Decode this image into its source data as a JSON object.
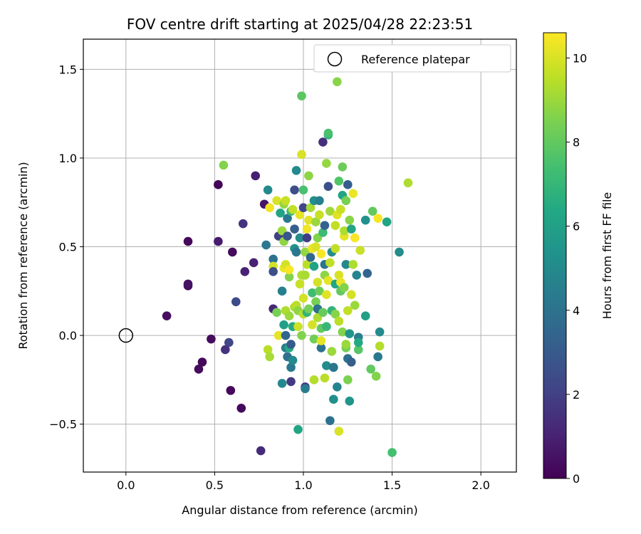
{
  "chart_data": {
    "type": "scatter",
    "title": "FOV centre drift starting at 2025/04/28 22:23:51",
    "xlabel": "Angular distance from reference (arcmin)",
    "ylabel": "Rotation from reference (arcmin)",
    "xlim": [
      -0.24,
      2.2
    ],
    "ylim": [
      -0.77,
      1.67
    ],
    "xticks": [
      0.0,
      0.5,
      1.0,
      1.5,
      2.0
    ],
    "xtick_labels": [
      "0.0",
      "0.5",
      "1.0",
      "1.5",
      "2.0"
    ],
    "yticks": [
      -0.5,
      0.0,
      0.5,
      1.0,
      1.5
    ],
    "ytick_labels": [
      "−0.5",
      "0.0",
      "0.5",
      "1.0",
      "1.5"
    ],
    "grid": true,
    "legend": {
      "position": "top-right",
      "entries": [
        "Reference platepar"
      ]
    },
    "reference_point": {
      "x": 0.0,
      "y": 0.0,
      "marker": "open-circle"
    },
    "colorbar": {
      "label": "Hours from first FF file",
      "colormap": "viridis",
      "range": [
        0,
        10.6
      ],
      "ticks": [
        0,
        2,
        4,
        6,
        8,
        10
      ],
      "tick_labels": [
        "0",
        "2",
        "4",
        "6",
        "8",
        "10"
      ]
    },
    "points": [
      {
        "x": 0.23,
        "y": 0.11,
        "c": 0.4
      },
      {
        "x": 0.35,
        "y": 0.53,
        "c": 0.2
      },
      {
        "x": 0.35,
        "y": 0.28,
        "c": 0.3
      },
      {
        "x": 0.35,
        "y": 0.29,
        "c": 0.5
      },
      {
        "x": 0.41,
        "y": -0.19,
        "c": 0.3
      },
      {
        "x": 0.43,
        "y": -0.15,
        "c": 0.2
      },
      {
        "x": 0.48,
        "y": -0.02,
        "c": 0.3
      },
      {
        "x": 0.52,
        "y": 0.85,
        "c": 0.1
      },
      {
        "x": 0.52,
        "y": 0.53,
        "c": 0.8
      },
      {
        "x": 0.56,
        "y": -0.08,
        "c": 1.5
      },
      {
        "x": 0.58,
        "y": -0.04,
        "c": 2.2
      },
      {
        "x": 0.59,
        "y": -0.31,
        "c": 0.2
      },
      {
        "x": 0.6,
        "y": 0.47,
        "c": 0.3
      },
      {
        "x": 0.62,
        "y": 0.19,
        "c": 2.4
      },
      {
        "x": 0.65,
        "y": -0.41,
        "c": 0.2
      },
      {
        "x": 0.67,
        "y": 0.36,
        "c": 1.0
      },
      {
        "x": 0.66,
        "y": 0.63,
        "c": 1.6
      },
      {
        "x": 0.73,
        "y": 0.9,
        "c": 0.9
      },
      {
        "x": 0.72,
        "y": 0.41,
        "c": 1.0
      },
      {
        "x": 0.76,
        "y": -0.65,
        "c": 1.3
      },
      {
        "x": 0.55,
        "y": 0.96,
        "c": 8.6
      },
      {
        "x": 0.78,
        "y": 0.74,
        "c": 0.6
      },
      {
        "x": 0.79,
        "y": 0.51,
        "c": 4.2
      },
      {
        "x": 0.8,
        "y": 0.82,
        "c": 5.0
      },
      {
        "x": 0.8,
        "y": -0.08,
        "c": 9.5
      },
      {
        "x": 0.81,
        "y": -0.12,
        "c": 9.2
      },
      {
        "x": 0.81,
        "y": 0.72,
        "c": 10.4
      },
      {
        "x": 0.83,
        "y": 0.43,
        "c": 4.0
      },
      {
        "x": 0.83,
        "y": 0.39,
        "c": 9.9
      },
      {
        "x": 0.83,
        "y": 0.15,
        "c": 1.2
      },
      {
        "x": 0.83,
        "y": 0.36,
        "c": 2.5
      },
      {
        "x": 0.85,
        "y": 0.13,
        "c": 8.4
      },
      {
        "x": 0.85,
        "y": 0.76,
        "c": 10.0
      },
      {
        "x": 0.86,
        "y": 0.0,
        "c": 10.2
      },
      {
        "x": 0.86,
        "y": 0.56,
        "c": 2.0
      },
      {
        "x": 0.87,
        "y": 0.69,
        "c": 6.2
      },
      {
        "x": 0.88,
        "y": 0.25,
        "c": 4.6
      },
      {
        "x": 0.88,
        "y": 0.59,
        "c": 9.0
      },
      {
        "x": 0.88,
        "y": -0.27,
        "c": 5.0
      },
      {
        "x": 0.89,
        "y": 0.74,
        "c": 8.9
      },
      {
        "x": 0.89,
        "y": 0.53,
        "c": 8.8
      },
      {
        "x": 0.89,
        "y": 0.38,
        "c": 10.3
      },
      {
        "x": 0.89,
        "y": 0.06,
        "c": 6.0
      },
      {
        "x": 0.9,
        "y": 0.4,
        "c": 9.9
      },
      {
        "x": 0.9,
        "y": 0.76,
        "c": 9.7
      },
      {
        "x": 0.9,
        "y": 0.0,
        "c": 3.5
      },
      {
        "x": 0.9,
        "y": -0.07,
        "c": 4.5
      },
      {
        "x": 0.9,
        "y": 0.14,
        "c": 9.3
      },
      {
        "x": 0.91,
        "y": 0.66,
        "c": 4.3
      },
      {
        "x": 0.91,
        "y": -0.12,
        "c": 3.9
      },
      {
        "x": 0.91,
        "y": 0.56,
        "c": 2.8
      },
      {
        "x": 0.92,
        "y": 0.33,
        "c": 8.6
      },
      {
        "x": 0.92,
        "y": 0.11,
        "c": 9.0
      },
      {
        "x": 0.92,
        "y": 0.37,
        "c": 10.5
      },
      {
        "x": 0.92,
        "y": -0.07,
        "c": 6.4
      },
      {
        "x": 0.93,
        "y": -0.05,
        "c": 3.0
      },
      {
        "x": 0.93,
        "y": -0.18,
        "c": 4.2
      },
      {
        "x": 0.93,
        "y": 0.7,
        "c": 7.1
      },
      {
        "x": 0.93,
        "y": -0.26,
        "c": 1.8
      },
      {
        "x": 0.94,
        "y": -0.14,
        "c": 5.0
      },
      {
        "x": 0.94,
        "y": 0.05,
        "c": 6.5
      },
      {
        "x": 0.94,
        "y": 0.71,
        "c": 9.6
      },
      {
        "x": 0.95,
        "y": 0.16,
        "c": 9.3
      },
      {
        "x": 0.95,
        "y": 0.49,
        "c": 5.3
      },
      {
        "x": 0.95,
        "y": 0.6,
        "c": 3.2
      },
      {
        "x": 0.95,
        "y": 0.82,
        "c": 2.5
      },
      {
        "x": 0.96,
        "y": 0.93,
        "c": 5.0
      },
      {
        "x": 0.96,
        "y": 0.47,
        "c": 4.2
      },
      {
        "x": 0.96,
        "y": 0.17,
        "c": 9.5
      },
      {
        "x": 0.97,
        "y": 0.14,
        "c": 8.8
      },
      {
        "x": 0.97,
        "y": -0.53,
        "c": 6.2
      },
      {
        "x": 0.97,
        "y": 0.05,
        "c": 9.8
      },
      {
        "x": 0.98,
        "y": 0.68,
        "c": 10.2
      },
      {
        "x": 0.98,
        "y": 0.55,
        "c": 5.1
      },
      {
        "x": 0.98,
        "y": 0.29,
        "c": 9.7
      },
      {
        "x": 0.99,
        "y": 1.35,
        "c": 7.9
      },
      {
        "x": 0.99,
        "y": 1.02,
        "c": 10.0
      },
      {
        "x": 0.99,
        "y": 0.34,
        "c": 9.4
      },
      {
        "x": 0.99,
        "y": 0.0,
        "c": 8.6
      },
      {
        "x": 1.0,
        "y": 0.82,
        "c": 7.5
      },
      {
        "x": 1.0,
        "y": 0.72,
        "c": 2.2
      },
      {
        "x": 1.0,
        "y": 0.21,
        "c": 9.9
      },
      {
        "x": 1.0,
        "y": 0.12,
        "c": 9.5
      },
      {
        "x": 1.01,
        "y": -0.29,
        "c": 1.8
      },
      {
        "x": 1.01,
        "y": -0.3,
        "c": 4.4
      },
      {
        "x": 1.01,
        "y": 0.34,
        "c": 9.2
      },
      {
        "x": 1.01,
        "y": 0.47,
        "c": 8.9
      },
      {
        "x": 1.02,
        "y": 0.6,
        "c": 10.4
      },
      {
        "x": 1.02,
        "y": 0.55,
        "c": 1.9
      },
      {
        "x": 1.02,
        "y": 0.13,
        "c": 6.9
      },
      {
        "x": 1.02,
        "y": 0.4,
        "c": 9.5
      },
      {
        "x": 1.03,
        "y": 0.9,
        "c": 8.8
      },
      {
        "x": 1.03,
        "y": 0.65,
        "c": 10.1
      },
      {
        "x": 1.03,
        "y": 0.15,
        "c": 8.4
      },
      {
        "x": 1.04,
        "y": 0.44,
        "c": 3.5
      },
      {
        "x": 1.04,
        "y": 0.72,
        "c": 9.2
      },
      {
        "x": 1.05,
        "y": 0.06,
        "c": 9.9
      },
      {
        "x": 1.05,
        "y": 0.49,
        "c": 10.3
      },
      {
        "x": 1.05,
        "y": 0.24,
        "c": 7.3
      },
      {
        "x": 1.06,
        "y": 0.76,
        "c": 5.2
      },
      {
        "x": 1.06,
        "y": -0.25,
        "c": 9.4
      },
      {
        "x": 1.06,
        "y": 0.39,
        "c": 6.1
      },
      {
        "x": 1.06,
        "y": -0.02,
        "c": 8.3
      },
      {
        "x": 1.07,
        "y": 0.5,
        "c": 10.0
      },
      {
        "x": 1.07,
        "y": 0.19,
        "c": 8.4
      },
      {
        "x": 1.07,
        "y": 0.64,
        "c": 9.0
      },
      {
        "x": 1.08,
        "y": 0.55,
        "c": 8.6
      },
      {
        "x": 1.08,
        "y": 0.1,
        "c": 9.3
      },
      {
        "x": 1.08,
        "y": 0.3,
        "c": 9.9
      },
      {
        "x": 1.08,
        "y": 0.15,
        "c": 3.9
      },
      {
        "x": 1.09,
        "y": 0.76,
        "c": 4.6
      },
      {
        "x": 1.09,
        "y": 0.25,
        "c": 8.2
      },
      {
        "x": 1.09,
        "y": 0.68,
        "c": 9.7
      },
      {
        "x": 1.1,
        "y": -0.07,
        "c": 4.0
      },
      {
        "x": 1.1,
        "y": 0.46,
        "c": 10.5
      },
      {
        "x": 1.1,
        "y": -0.03,
        "c": 10.2
      },
      {
        "x": 1.1,
        "y": 0.04,
        "c": 8.0
      },
      {
        "x": 1.11,
        "y": 0.58,
        "c": 7.2
      },
      {
        "x": 1.11,
        "y": 0.13,
        "c": 8.1
      },
      {
        "x": 1.11,
        "y": 1.09,
        "c": 1.4
      },
      {
        "x": 1.12,
        "y": 0.62,
        "c": 3.3
      },
      {
        "x": 1.12,
        "y": 0.34,
        "c": 8.8
      },
      {
        "x": 1.12,
        "y": 0.4,
        "c": 4.1
      },
      {
        "x": 1.12,
        "y": -0.24,
        "c": 9.5
      },
      {
        "x": 1.13,
        "y": 0.23,
        "c": 10.1
      },
      {
        "x": 1.13,
        "y": 0.05,
        "c": 7.0
      },
      {
        "x": 1.13,
        "y": -0.17,
        "c": 5.1
      },
      {
        "x": 1.13,
        "y": 0.97,
        "c": 8.9
      },
      {
        "x": 1.14,
        "y": 1.13,
        "c": 6.8
      },
      {
        "x": 1.14,
        "y": 1.14,
        "c": 7.5
      },
      {
        "x": 1.14,
        "y": 0.84,
        "c": 2.6
      },
      {
        "x": 1.14,
        "y": 0.31,
        "c": 10.2
      },
      {
        "x": 1.15,
        "y": -0.48,
        "c": 4.0
      },
      {
        "x": 1.15,
        "y": 0.7,
        "c": 9.1
      },
      {
        "x": 1.15,
        "y": 0.41,
        "c": 9.6
      },
      {
        "x": 1.16,
        "y": 0.14,
        "c": 6.9
      },
      {
        "x": 1.16,
        "y": -0.09,
        "c": 9.0
      },
      {
        "x": 1.16,
        "y": 0.47,
        "c": 5.1
      },
      {
        "x": 1.17,
        "y": -0.18,
        "c": 4.1
      },
      {
        "x": 1.17,
        "y": -0.36,
        "c": 5.2
      },
      {
        "x": 1.18,
        "y": 0.12,
        "c": 8.7
      },
      {
        "x": 1.18,
        "y": 0.62,
        "c": 9.6
      },
      {
        "x": 1.18,
        "y": 0.29,
        "c": 6.2
      },
      {
        "x": 1.18,
        "y": 0.49,
        "c": 9.6
      },
      {
        "x": 1.19,
        "y": 1.43,
        "c": 8.7
      },
      {
        "x": 1.19,
        "y": -0.29,
        "c": 4.8
      },
      {
        "x": 1.19,
        "y": 0.68,
        "c": 10.1
      },
      {
        "x": 1.2,
        "y": 0.87,
        "c": 7.7
      },
      {
        "x": 1.2,
        "y": 0.08,
        "c": 9.5
      },
      {
        "x": 1.2,
        "y": -0.54,
        "c": 10.0
      },
      {
        "x": 1.2,
        "y": 0.34,
        "c": 10.0
      },
      {
        "x": 1.21,
        "y": 0.25,
        "c": 8.0
      },
      {
        "x": 1.21,
        "y": 0.71,
        "c": 9.7
      },
      {
        "x": 1.21,
        "y": 0.3,
        "c": 10.3
      },
      {
        "x": 1.22,
        "y": 0.95,
        "c": 8.2
      },
      {
        "x": 1.22,
        "y": 0.79,
        "c": 6.2
      },
      {
        "x": 1.22,
        "y": 0.02,
        "c": 8.6
      },
      {
        "x": 1.23,
        "y": 0.27,
        "c": 8.6
      },
      {
        "x": 1.23,
        "y": 0.56,
        "c": 10.2
      },
      {
        "x": 1.23,
        "y": 0.59,
        "c": 9.3
      },
      {
        "x": 1.24,
        "y": -0.07,
        "c": 8.4
      },
      {
        "x": 1.24,
        "y": 0.76,
        "c": 8.4
      },
      {
        "x": 1.24,
        "y": -0.05,
        "c": 9.0
      },
      {
        "x": 1.24,
        "y": 0.4,
        "c": 4.9
      },
      {
        "x": 1.25,
        "y": 0.14,
        "c": 9.6
      },
      {
        "x": 1.25,
        "y": -0.13,
        "c": 4.0
      },
      {
        "x": 1.25,
        "y": -0.25,
        "c": 8.5
      },
      {
        "x": 1.25,
        "y": 0.85,
        "c": 3.1
      },
      {
        "x": 1.26,
        "y": -0.37,
        "c": 5.5
      },
      {
        "x": 1.26,
        "y": 0.01,
        "c": 5.5
      },
      {
        "x": 1.26,
        "y": 0.65,
        "c": 8.7
      },
      {
        "x": 1.27,
        "y": 0.6,
        "c": 6.2
      },
      {
        "x": 1.27,
        "y": -0.15,
        "c": 3.2
      },
      {
        "x": 1.27,
        "y": 0.23,
        "c": 9.9
      },
      {
        "x": 1.28,
        "y": 0.8,
        "c": 10.3
      },
      {
        "x": 1.28,
        "y": 0.4,
        "c": 9.3
      },
      {
        "x": 1.29,
        "y": 0.17,
        "c": 9.0
      },
      {
        "x": 1.29,
        "y": 0.55,
        "c": 10.5
      },
      {
        "x": 1.3,
        "y": 0.34,
        "c": 4.8
      },
      {
        "x": 1.31,
        "y": -0.01,
        "c": 4.5
      },
      {
        "x": 1.31,
        "y": -0.08,
        "c": 7.8
      },
      {
        "x": 1.31,
        "y": -0.04,
        "c": 6.4
      },
      {
        "x": 1.32,
        "y": 0.48,
        "c": 9.7
      },
      {
        "x": 1.35,
        "y": 0.11,
        "c": 6.0
      },
      {
        "x": 1.35,
        "y": 0.65,
        "c": 5.3
      },
      {
        "x": 1.36,
        "y": 0.35,
        "c": 3.4
      },
      {
        "x": 1.38,
        "y": -0.19,
        "c": 8.0
      },
      {
        "x": 1.39,
        "y": 0.7,
        "c": 8.0
      },
      {
        "x": 1.41,
        "y": -0.23,
        "c": 8.6
      },
      {
        "x": 1.42,
        "y": -0.12,
        "c": 4.3
      },
      {
        "x": 1.42,
        "y": 0.66,
        "c": 10.5
      },
      {
        "x": 1.43,
        "y": 0.02,
        "c": 5.0
      },
      {
        "x": 1.43,
        "y": -0.06,
        "c": 9.4
      },
      {
        "x": 1.47,
        "y": 0.64,
        "c": 6.2
      },
      {
        "x": 1.5,
        "y": -0.66,
        "c": 7.4
      },
      {
        "x": 1.54,
        "y": 0.47,
        "c": 5.1
      },
      {
        "x": 1.59,
        "y": 0.86,
        "c": 9.3
      }
    ]
  }
}
